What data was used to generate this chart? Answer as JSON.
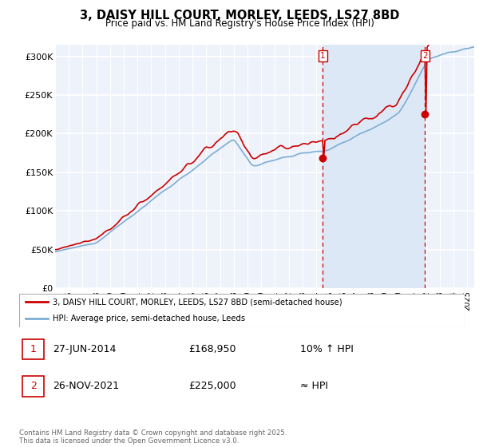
{
  "title": "3, DAISY HILL COURT, MORLEY, LEEDS, LS27 8BD",
  "subtitle": "Price paid vs. HM Land Registry's House Price Index (HPI)",
  "ylabel_ticks": [
    "£0",
    "£50K",
    "£100K",
    "£150K",
    "£200K",
    "£250K",
    "£300K"
  ],
  "ytick_values": [
    0,
    50000,
    100000,
    150000,
    200000,
    250000,
    300000
  ],
  "ylim": [
    0,
    315000
  ],
  "xlim_start": 1995.0,
  "xlim_end": 2025.5,
  "sale1_date": 2014.49,
  "sale1_price": 168950,
  "sale2_date": 2021.91,
  "sale2_price": 225000,
  "legend_line1": "3, DAISY HILL COURT, MORLEY, LEEDS, LS27 8BD (semi-detached house)",
  "legend_line2": "HPI: Average price, semi-detached house, Leeds",
  "table_row1": [
    "1",
    "27-JUN-2014",
    "£168,950",
    "10% ↑ HPI"
  ],
  "table_row2": [
    "2",
    "26-NOV-2021",
    "£225,000",
    "≈ HPI"
  ],
  "footer": "Contains HM Land Registry data © Crown copyright and database right 2025.\nThis data is licensed under the Open Government Licence v3.0.",
  "line_color_red": "#cc0000",
  "line_color_blue": "#7dadd4",
  "background_color": "#eef2fa",
  "shade_color": "#dce8f5",
  "grid_color": "#ffffff",
  "sale_marker_color": "#cc0000",
  "dashed_line_color": "#cc0000"
}
